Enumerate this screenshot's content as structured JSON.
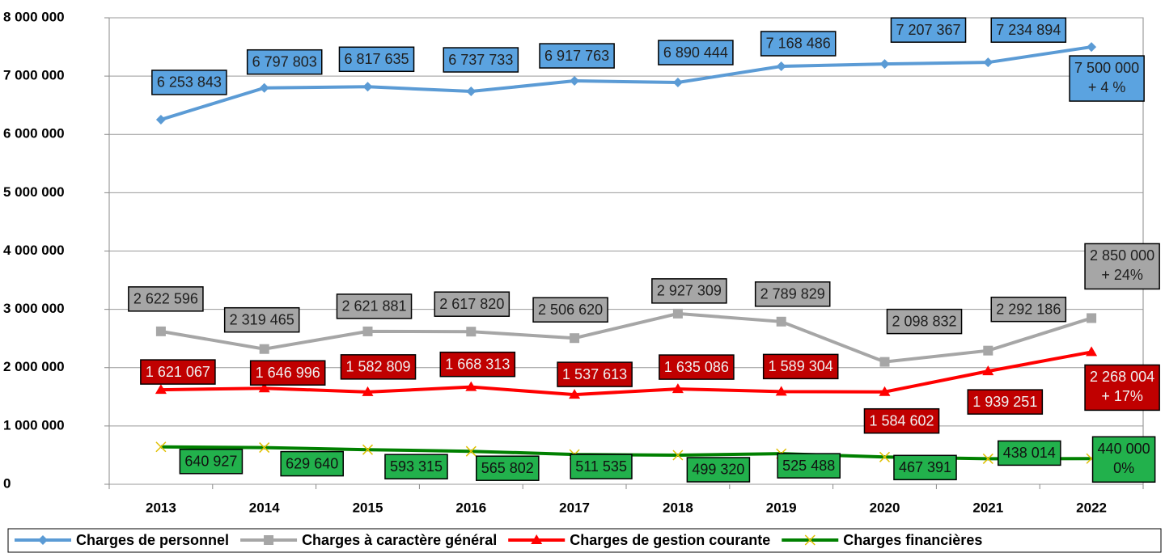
{
  "chart_data": {
    "type": "line",
    "categories": [
      "2013",
      "2014",
      "2015",
      "2016",
      "2017",
      "2018",
      "2019",
      "2020",
      "2021",
      "2022"
    ],
    "series": [
      {
        "name": "Charges de personnel",
        "color": "#5b9bd5",
        "label_color": "#5ba3e0",
        "text_color": "#1f1f1f",
        "marker": "diamond",
        "values": [
          6253843,
          6797803,
          6817635,
          6737733,
          6917763,
          6890444,
          7168486,
          7207367,
          7234894,
          7500000
        ],
        "value_labels": [
          "6 253 843",
          "6 797 803",
          "6 817 635",
          "6 737 733",
          "6 917 763",
          "6 890 444",
          "7 168 486",
          "7 207 367",
          "7 234 894",
          "7 500 000"
        ],
        "change": "+ 4 %"
      },
      {
        "name": "Charges à caractère général",
        "color": "#a6a6a6",
        "label_color": "#a6a6a6",
        "text_color": "#1f1f1f",
        "marker": "square",
        "values": [
          2622596,
          2319465,
          2621881,
          2617820,
          2506620,
          2927309,
          2789829,
          2098832,
          2292186,
          2850000
        ],
        "value_labels": [
          "2 622 596",
          "2 319 465",
          "2 621 881",
          "2 617 820",
          "2 506 620",
          "2 927 309",
          "2 789 829",
          "2 098 832",
          "2 292 186",
          "2 850 000"
        ],
        "change": "+ 24%"
      },
      {
        "name": "Charges de gestion courante",
        "color": "#ff0000",
        "label_color": "#c00000",
        "text_color": "#f0f0f0",
        "marker": "triangle",
        "values": [
          1621067,
          1646996,
          1582809,
          1668313,
          1537613,
          1635086,
          1589304,
          1584602,
          1939251,
          2268004
        ],
        "value_labels": [
          "1 621 067",
          "1 646 996",
          "1 582 809",
          "1 668 313",
          "1 537 613",
          "1 635 086",
          "1 589 304",
          "1 584 602",
          "1 939 251",
          "2 268 004"
        ],
        "change": "+ 17%"
      },
      {
        "name": "Charges financières",
        "color": "#008000",
        "label_color": "#22b14c",
        "text_color": "#111111",
        "marker": "x",
        "values": [
          640927,
          629640,
          593315,
          565802,
          511535,
          499320,
          525488,
          467391,
          438014,
          440000
        ],
        "value_labels": [
          "640 927",
          "629 640",
          "593 315",
          "565 802",
          "511 535",
          "499 320",
          "525 488",
          "467 391",
          "438 014",
          "440 000"
        ],
        "change": "0%"
      }
    ],
    "ylim": [
      0,
      8000000
    ],
    "yticks": [
      {
        "value": 0,
        "label": "0"
      },
      {
        "value": 1000000,
        "label": "1 000 000"
      },
      {
        "value": 2000000,
        "label": "2 000 000"
      },
      {
        "value": 3000000,
        "label": "3 000 000"
      },
      {
        "value": 4000000,
        "label": "4 000 000"
      },
      {
        "value": 5000000,
        "label": "5 000 000"
      },
      {
        "value": 6000000,
        "label": "6 000 000"
      },
      {
        "value": 7000000,
        "label": "7 000 000"
      },
      {
        "value": 8000000,
        "label": "8 000 000"
      }
    ],
    "grid": true,
    "legend": "bottom"
  }
}
